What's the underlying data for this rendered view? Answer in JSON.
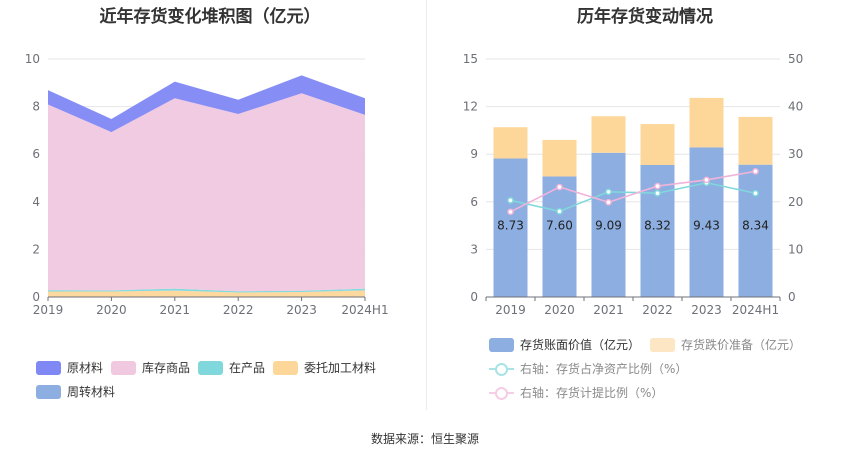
{
  "source": "数据来源：恒生聚源",
  "chart_data": [
    {
      "type": "area",
      "stacked": true,
      "title": "近年存货变化堆积图（亿元）",
      "categories": [
        "2019",
        "2020",
        "2021",
        "2022",
        "2023",
        "2024H1"
      ],
      "ylim": [
        0,
        10
      ],
      "yticks": [
        0,
        2,
        4,
        6,
        8,
        10
      ],
      "legend_position": "bottom-left",
      "series": [
        {
          "name": "原材料",
          "color": "#8088f5",
          "values": [
            0.6,
            0.55,
            0.7,
            0.6,
            0.75,
            0.7
          ]
        },
        {
          "name": "库存商品",
          "color": "#f0c8df",
          "values": [
            7.8,
            6.65,
            8.0,
            7.45,
            8.3,
            7.3
          ]
        },
        {
          "name": "在产品",
          "color": "#80d8dc",
          "values": [
            0.06,
            0.05,
            0.08,
            0.05,
            0.05,
            0.07
          ]
        },
        {
          "name": "委托加工材料",
          "color": "#fdd79a",
          "values": [
            0.22,
            0.22,
            0.26,
            0.18,
            0.2,
            0.27
          ]
        },
        {
          "name": "周转材料",
          "color": "#8daee0",
          "values": [
            0.01,
            0.01,
            0.01,
            0.01,
            0.01,
            0.01
          ]
        }
      ]
    },
    {
      "type": "bar",
      "stacked": true,
      "title": "历年存货变动情况",
      "categories": [
        "2019",
        "2020",
        "2021",
        "2022",
        "2023",
        "2024H1"
      ],
      "ylim": [
        0,
        15
      ],
      "yticks": [
        0,
        3,
        6,
        9,
        12,
        15
      ],
      "y2lim": [
        0,
        50
      ],
      "y2ticks": [
        0,
        10,
        20,
        30,
        40,
        50
      ],
      "legend_position": "bottom",
      "series": [
        {
          "name": "存货账面价值（亿元）",
          "color": "#8daee0",
          "values": [
            8.73,
            7.6,
            9.09,
            8.32,
            9.43,
            8.34
          ],
          "labels": [
            "8.73",
            "7.60",
            "9.09",
            "8.32",
            "9.43",
            "8.34"
          ]
        },
        {
          "name": "存货跌价准备（亿元）",
          "color": "#fdd79a",
          "values": [
            1.97,
            2.3,
            2.3,
            2.58,
            3.12,
            3.01
          ]
        }
      ],
      "line_series": [
        {
          "name": "右轴：存货占净资产比例（%）",
          "color": "#80d8dc",
          "axis": "right",
          "values": [
            20.3,
            18.0,
            22.1,
            21.8,
            24.0,
            21.8
          ]
        },
        {
          "name": "右轴：存货计提比例（%）",
          "color": "#f0b4da",
          "axis": "right",
          "values": [
            17.9,
            23.1,
            19.9,
            23.3,
            24.6,
            26.4
          ]
        }
      ]
    }
  ]
}
